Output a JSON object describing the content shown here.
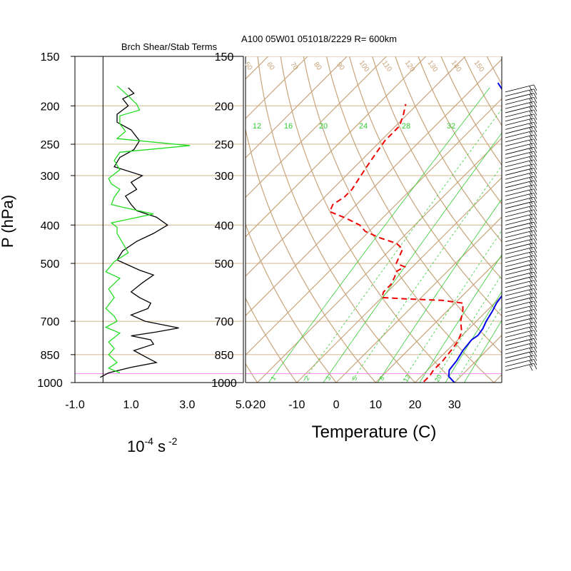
{
  "titles": {
    "left": "Brch Shear/Stab Terms",
    "right": "A100 05W01 051018/2229 R= 600km"
  },
  "labels": {
    "pressure_axis": "P (hPa)",
    "temperature_axis": "Temperature (C)",
    "shear_units_base": "10",
    "shear_units_exp": "-4",
    "shear_units_s": "s",
    "shear_units_s_exp": "-2"
  },
  "colors": {
    "grid": "#d2b48c",
    "isotherm": "#c8a47a",
    "mixing_ratio": "#33cc33",
    "temperature": "#0000ee",
    "dewpoint": "#ee0000",
    "shear": "#000000",
    "stability": "#22dd22",
    "highlight": "#f07cf0",
    "barb": "#000000"
  },
  "chart_data": [
    {
      "type": "line",
      "title": "Brch Shear/Stab Terms",
      "xlabel": "10^-4 s^-2",
      "ylabel": "P (hPa)",
      "xlim": [
        -1.0,
        5.0
      ],
      "x_ticks": [
        "-1.0",
        "1.0",
        "3.0",
        "5.0"
      ],
      "y_log": true,
      "ylim": [
        1000,
        150
      ],
      "y_ticks": [
        "150",
        "200",
        "250",
        "300",
        "400",
        "500",
        "700",
        "850",
        "1000"
      ],
      "highlight_band": [
        960,
        1000
      ],
      "series": [
        {
          "id": "shear",
          "color": "#000000",
          "points": [
            [
              0.9,
              180
            ],
            [
              1.1,
              186
            ],
            [
              0.7,
              192
            ],
            [
              0.9,
              200
            ],
            [
              0.5,
              210
            ],
            [
              0.5,
              220
            ],
            [
              1.0,
              230
            ],
            [
              1.3,
              245
            ],
            [
              1.1,
              258
            ],
            [
              0.6,
              270
            ],
            [
              0.4,
              285
            ],
            [
              1.4,
              300
            ],
            [
              1.0,
              312
            ],
            [
              1.2,
              325
            ],
            [
              0.8,
              338
            ],
            [
              1.0,
              355
            ],
            [
              1.2,
              368
            ],
            [
              1.9,
              382
            ],
            [
              2.3,
              400
            ],
            [
              1.8,
              420
            ],
            [
              1.2,
              440
            ],
            [
              0.7,
              465
            ],
            [
              0.5,
              490
            ],
            [
              0.9,
              505
            ],
            [
              1.3,
              520
            ],
            [
              1.8,
              535
            ],
            [
              1.4,
              560
            ],
            [
              1.0,
              590
            ],
            [
              1.3,
              610
            ],
            [
              1.7,
              630
            ],
            [
              1.6,
              650
            ],
            [
              1.0,
              675
            ],
            [
              1.5,
              700
            ],
            [
              2.7,
              728
            ],
            [
              1.9,
              745
            ],
            [
              1.0,
              762
            ],
            [
              1.7,
              780
            ],
            [
              1.8,
              800
            ],
            [
              1.1,
              830
            ],
            [
              1.5,
              860
            ],
            [
              1.9,
              890
            ],
            [
              1.0,
              915
            ],
            [
              0.2,
              945
            ],
            [
              -0.1,
              970
            ]
          ]
        },
        {
          "id": "stability",
          "color": "#22dd22",
          "points": [
            [
              0.5,
              178
            ],
            [
              0.8,
              186
            ],
            [
              1.2,
              198
            ],
            [
              1.3,
              205
            ],
            [
              0.6,
              212
            ],
            [
              0.6,
              222
            ],
            [
              0.8,
              232
            ],
            [
              0.5,
              242
            ],
            [
              3.1,
              252
            ],
            [
              0.6,
              262
            ],
            [
              0.4,
              275
            ],
            [
              0.6,
              290
            ],
            [
              0.2,
              305
            ],
            [
              0.3,
              315
            ],
            [
              0.6,
              325
            ],
            [
              0.4,
              340
            ],
            [
              0.3,
              355
            ],
            [
              0.8,
              362
            ],
            [
              1.8,
              375
            ],
            [
              0.3,
              395
            ],
            [
              0.5,
              405
            ],
            [
              0.5,
              420
            ],
            [
              0.9,
              470
            ],
            [
              0.4,
              495
            ],
            [
              0.1,
              525
            ],
            [
              0.6,
              545
            ],
            [
              0.2,
              580
            ],
            [
              0.4,
              610
            ],
            [
              0.1,
              650
            ],
            [
              0.4,
              680
            ],
            [
              0.5,
              700
            ],
            [
              0.1,
              725
            ],
            [
              0.6,
              750
            ],
            [
              0.2,
              790
            ],
            [
              0.4,
              820
            ],
            [
              0.2,
              850
            ],
            [
              0.5,
              890
            ],
            [
              0.2,
              920
            ],
            [
              0.6,
              945
            ]
          ]
        }
      ]
    },
    {
      "type": "line",
      "title": "A100 05W01 051018/2229 R= 600km",
      "xlabel": "Temperature (C)",
      "ylabel": "P (hPa)",
      "skew_t": true,
      "xlim": [
        -23,
        42
      ],
      "x_ticks": [
        "-20",
        "-10",
        "0",
        "10",
        "20",
        "30"
      ],
      "y_log": true,
      "ylim": [
        1000,
        150
      ],
      "y_ticks": [
        "150",
        "200",
        "250",
        "300",
        "400",
        "500",
        "700",
        "850",
        "1000"
      ],
      "highlight_band": [
        960,
        1000
      ],
      "mixing_ratio_labels": [
        "12",
        "16",
        "20",
        "24",
        "28",
        "32"
      ],
      "mixing_ratio_bottom_labels": [
        "1",
        "2",
        "3",
        "5",
        "8",
        "12",
        "20"
      ],
      "adiabat_labels": [
        "50",
        "60",
        "70",
        "80",
        "90",
        "100",
        "110",
        "120",
        "130",
        "140",
        "150"
      ],
      "series": [
        {
          "id": "temperature",
          "color": "#0000ee",
          "points": [
            [
              30,
              1000
            ],
            [
              27,
              965
            ],
            [
              25.5,
              930
            ],
            [
              25,
              880
            ],
            [
              24,
              830
            ],
            [
              23.5,
              780
            ],
            [
              24,
              760
            ],
            [
              23.5,
              730
            ],
            [
              22.5,
              700
            ],
            [
              21.5,
              660
            ],
            [
              20.5,
              630
            ],
            [
              20,
              600
            ],
            [
              17.5,
              550
            ],
            [
              14,
              500
            ],
            [
              10,
              450
            ],
            [
              7,
              400
            ],
            [
              5,
              365
            ],
            [
              2,
              340
            ],
            [
              0,
              320
            ],
            [
              -3,
              300
            ],
            [
              -7,
              285
            ],
            [
              -10,
              265
            ],
            [
              -14,
              250
            ],
            [
              -17,
              230
            ],
            [
              -22,
              210
            ],
            [
              -27,
              196
            ],
            [
              -31,
              185
            ],
            [
              -35,
              175
            ]
          ]
        },
        {
          "id": "dewpoint",
          "color": "#ee0000",
          "dashed": true,
          "points": [
            [
              22,
              995
            ],
            [
              22,
              960
            ],
            [
              21.5,
              930
            ],
            [
              21.5,
              880
            ],
            [
              21,
              830
            ],
            [
              20.5,
              790
            ],
            [
              19,
              745
            ],
            [
              16,
              700
            ],
            [
              14,
              660
            ],
            [
              12,
              630
            ],
            [
              6,
              620
            ],
            [
              -3,
              615
            ],
            [
              -10,
              610
            ],
            [
              -11,
              590
            ],
            [
              -11,
              565
            ],
            [
              -12,
              540
            ],
            [
              -13,
              525
            ],
            [
              -12,
              510
            ],
            [
              -15,
              500
            ],
            [
              -16,
              480
            ],
            [
              -17,
              460
            ],
            [
              -20,
              445
            ],
            [
              -26,
              430
            ],
            [
              -31,
              415
            ],
            [
              -34,
              400
            ],
            [
              -39,
              385
            ],
            [
              -45,
              370
            ],
            [
              -46,
              355
            ],
            [
              -45,
              340
            ],
            [
              -45,
              325
            ],
            [
              -46,
              305
            ],
            [
              -47,
              285
            ],
            [
              -48,
              265
            ],
            [
              -49,
              245
            ],
            [
              -49,
              225
            ],
            [
              -51,
              210
            ],
            [
              -53,
              198
            ]
          ]
        }
      ]
    }
  ],
  "wind_barbs": {
    "column": "right",
    "p_top": 180,
    "p_bottom": 910,
    "count": 68,
    "direction_deg": 80
  }
}
